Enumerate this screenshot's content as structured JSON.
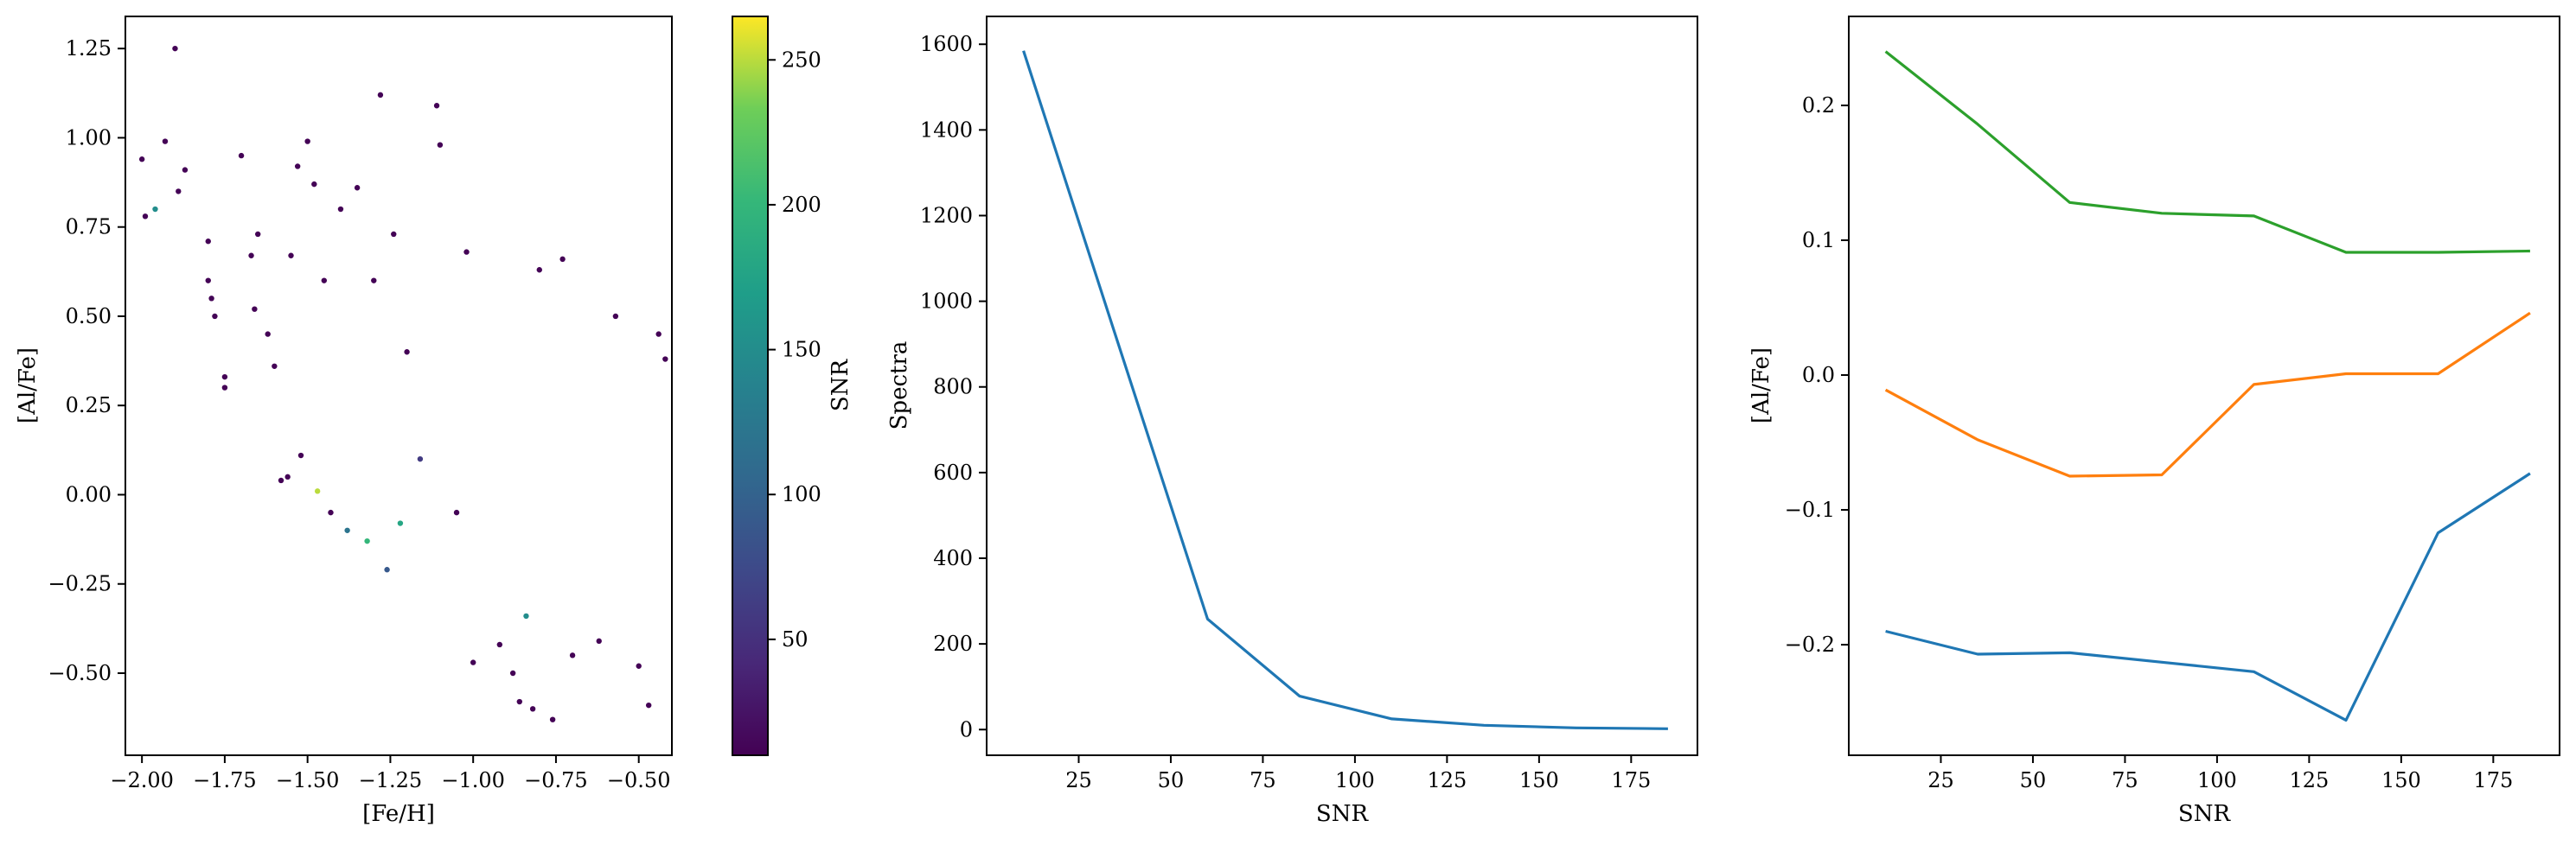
{
  "chart_data": [
    {
      "type": "scatter",
      "xlabel": "[Fe/H]",
      "ylabel": "[Al/Fe]",
      "xlim": [
        -2.05,
        -0.4
      ],
      "ylim": [
        -0.73,
        1.34
      ],
      "xticks": [
        -2.0,
        -1.75,
        -1.5,
        -1.25,
        -1.0,
        -0.75,
        -0.5
      ],
      "xtick_labels": [
        "−2.00",
        "−1.75",
        "−1.50",
        "−1.25",
        "−1.00",
        "−0.75",
        "−0.50"
      ],
      "yticks": [
        -0.5,
        -0.25,
        0.0,
        0.25,
        0.5,
        0.75,
        1.0,
        1.25
      ],
      "ytick_labels": [
        "−0.50",
        "−0.25",
        "0.00",
        "0.25",
        "0.50",
        "0.75",
        "1.00",
        "1.25"
      ],
      "colormap": "viridis",
      "color_variable": "SNR",
      "colorbar": {
        "label": "SNR",
        "range": [
          10,
          265
        ],
        "ticks": [
          50,
          100,
          150,
          200,
          250
        ],
        "tick_labels": [
          "50",
          "100",
          "150",
          "200",
          "250"
        ]
      },
      "point_color_low": "#440154",
      "points": [
        [
          -2.0,
          0.94,
          12
        ],
        [
          -1.99,
          0.78,
          12
        ],
        [
          -1.96,
          0.8,
          150
        ],
        [
          -1.93,
          0.99,
          12
        ],
        [
          -1.9,
          1.25,
          12
        ],
        [
          -1.89,
          0.85,
          12
        ],
        [
          -1.87,
          0.91,
          12
        ],
        [
          -1.8,
          0.71,
          12
        ],
        [
          -1.8,
          0.6,
          12
        ],
        [
          -1.79,
          0.55,
          12
        ],
        [
          -1.78,
          0.5,
          12
        ],
        [
          -1.75,
          0.33,
          12
        ],
        [
          -1.75,
          0.3,
          12
        ],
        [
          -1.7,
          0.95,
          12
        ],
        [
          -1.67,
          0.67,
          12
        ],
        [
          -1.66,
          0.52,
          12
        ],
        [
          -1.65,
          0.73,
          12
        ],
        [
          -1.62,
          0.45,
          12
        ],
        [
          -1.6,
          0.36,
          12
        ],
        [
          -1.58,
          0.04,
          12
        ],
        [
          -1.56,
          0.05,
          12
        ],
        [
          -1.55,
          0.67,
          12
        ],
        [
          -1.53,
          0.92,
          12
        ],
        [
          -1.52,
          0.11,
          12
        ],
        [
          -1.5,
          0.99,
          12
        ],
        [
          -1.48,
          0.87,
          12
        ],
        [
          -1.47,
          0.01,
          250
        ],
        [
          -1.45,
          0.6,
          12
        ],
        [
          -1.43,
          -0.05,
          12
        ],
        [
          -1.4,
          0.8,
          12
        ],
        [
          -1.38,
          -0.1,
          120
        ],
        [
          -1.35,
          0.86,
          12
        ],
        [
          -1.32,
          -0.13,
          200
        ],
        [
          -1.3,
          0.6,
          12
        ],
        [
          -1.28,
          1.12,
          12
        ],
        [
          -1.26,
          -0.21,
          90
        ],
        [
          -1.24,
          0.73,
          12
        ],
        [
          -1.22,
          -0.08,
          180
        ],
        [
          -1.2,
          0.4,
          12
        ],
        [
          -1.16,
          0.1,
          60
        ],
        [
          -1.11,
          1.09,
          12
        ],
        [
          -1.1,
          0.98,
          12
        ],
        [
          -1.05,
          -0.05,
          12
        ],
        [
          -1.02,
          0.68,
          12
        ],
        [
          -1.0,
          -0.47,
          12
        ],
        [
          -0.92,
          -0.42,
          12
        ],
        [
          -0.88,
          -0.5,
          12
        ],
        [
          -0.86,
          -0.58,
          12
        ],
        [
          -0.84,
          -0.34,
          150
        ],
        [
          -0.82,
          -0.6,
          12
        ],
        [
          -0.8,
          0.63,
          12
        ],
        [
          -0.76,
          -0.63,
          12
        ],
        [
          -0.73,
          0.66,
          12
        ],
        [
          -0.7,
          -0.45,
          12
        ],
        [
          -0.62,
          -0.41,
          12
        ],
        [
          -0.57,
          0.5,
          12
        ],
        [
          -0.5,
          -0.48,
          12
        ],
        [
          -0.47,
          -0.59,
          12
        ],
        [
          -0.44,
          0.45,
          12
        ],
        [
          -0.42,
          0.38,
          12
        ]
      ]
    },
    {
      "type": "line",
      "xlabel": "SNR",
      "ylabel": "Spectra",
      "xlim": [
        0,
        193
      ],
      "ylim": [
        -60,
        1665
      ],
      "xticks": [
        25,
        50,
        75,
        100,
        125,
        150,
        175
      ],
      "yticks": [
        0,
        200,
        400,
        600,
        800,
        1000,
        1200,
        1400,
        1600
      ],
      "series": [
        {
          "color": "#1f77b4",
          "x": [
            10,
            35,
            60,
            85,
            110,
            135,
            160,
            185
          ],
          "y": [
            1585,
            920,
            258,
            78,
            25,
            10,
            4,
            2
          ]
        }
      ]
    },
    {
      "type": "line",
      "xlabel": "SNR",
      "ylabel": "[Al/Fe]",
      "xlim": [
        0,
        193
      ],
      "ylim": [
        -0.282,
        0.266
      ],
      "xticks": [
        25,
        50,
        75,
        100,
        125,
        150,
        175
      ],
      "yticks": [
        -0.2,
        -0.1,
        0.0,
        0.1,
        0.2
      ],
      "ytick_labels": [
        "−0.2",
        "−0.1",
        "0.0",
        "0.1",
        "0.2"
      ],
      "series": [
        {
          "color": "#1f77b4",
          "x": [
            10,
            35,
            60,
            85,
            110,
            135,
            160,
            185
          ],
          "y": [
            -0.19,
            -0.207,
            -0.206,
            -0.213,
            -0.22,
            -0.256,
            -0.117,
            -0.073
          ]
        },
        {
          "color": "#ff7f0e",
          "x": [
            10,
            35,
            60,
            85,
            110,
            135,
            160,
            185
          ],
          "y": [
            -0.011,
            -0.048,
            -0.075,
            -0.074,
            -0.007,
            0.001,
            0.001,
            0.046
          ]
        },
        {
          "color": "#2ca02c",
          "x": [
            10,
            35,
            60,
            85,
            110,
            135,
            160,
            185
          ],
          "y": [
            0.24,
            0.186,
            0.128,
            0.12,
            0.118,
            0.091,
            0.091,
            0.092
          ]
        }
      ]
    }
  ]
}
